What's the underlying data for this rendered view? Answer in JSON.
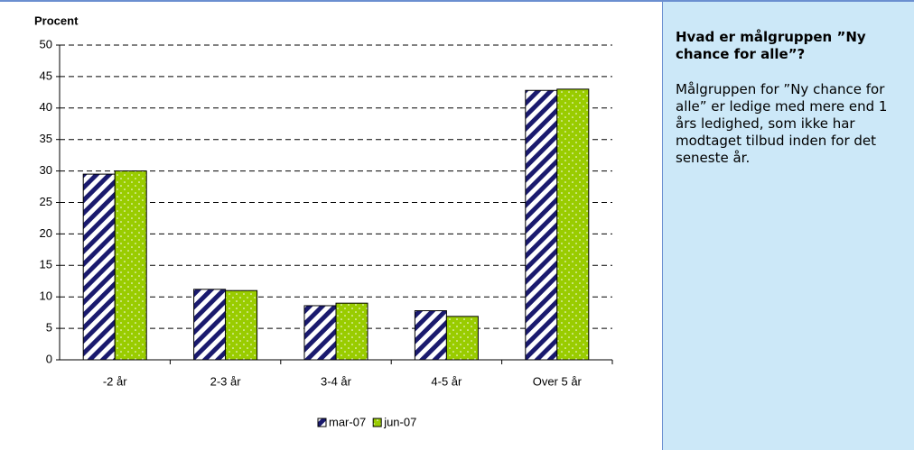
{
  "chart_data": {
    "type": "bar",
    "y_label": "Procent",
    "categories": [
      "-2 år",
      "2-3 år",
      "3-4 år",
      "4-5 år",
      "Over 5 år"
    ],
    "series": [
      {
        "name": "mar-07",
        "color": "#1a1a6e",
        "pattern": "diagonal",
        "values": [
          29.5,
          11.2,
          8.6,
          7.8,
          42.8
        ]
      },
      {
        "name": "jun-07",
        "color": "#99cc00",
        "pattern": "dots",
        "values": [
          30,
          11,
          9,
          6.9,
          43
        ]
      }
    ],
    "ylim": [
      0,
      50
    ],
    "yticks": [
      0,
      5,
      10,
      15,
      20,
      25,
      30,
      35,
      40,
      45,
      50
    ],
    "grid": true,
    "legend": "bottom"
  },
  "panel": {
    "title": "Hvad er målgruppen ”Ny chance for alle”?",
    "body": "Målgruppen for ”Ny chance for alle” er ledige med mere end 1 års ledighed, som ikke har modtaget tilbud inden for det seneste år."
  }
}
